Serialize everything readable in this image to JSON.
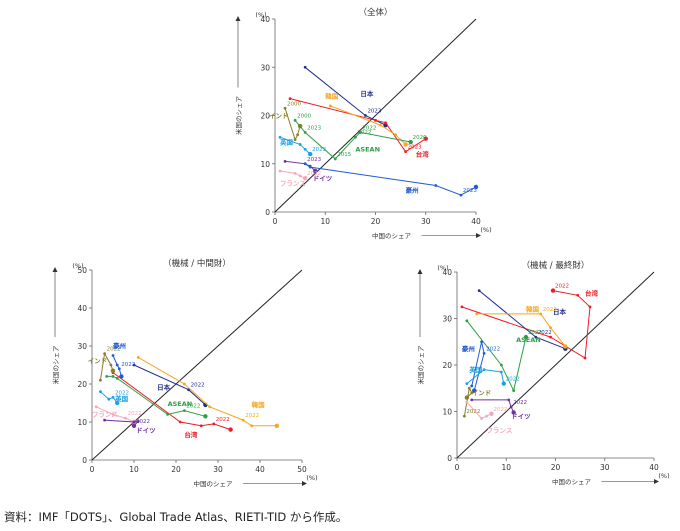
{
  "source_note": "資料：IMF「DOTS」、Global Trade Atlas、RIETI-TID から作成。",
  "chart_data": [
    {
      "type": "scatter",
      "title": "（全体）",
      "xlabel": "中国のシェア",
      "ylabel": "米国のシェア",
      "unit": "(%)",
      "xlim": [
        0,
        40
      ],
      "ylim": [
        0,
        40
      ],
      "xticks": [
        0,
        10,
        20,
        30,
        40
      ],
      "yticks": [
        0,
        10,
        20,
        30,
        40
      ],
      "diagonal": true,
      "series": [
        {
          "name": "日本",
          "color": "#1f2d8c",
          "points": [
            [
              6,
              30
            ],
            [
              18,
              20
            ],
            [
              22,
              18
            ]
          ],
          "point_labels": [
            [
              "2023",
              1
            ]
          ],
          "name_pos": [
            17,
            24
          ]
        },
        {
          "name": "台湾",
          "color": "#ee1c24",
          "points": [
            [
              3,
              23.5
            ],
            [
              20,
              19
            ],
            [
              22,
              18.5
            ],
            [
              26,
              12.5
            ],
            [
              30,
              15.2
            ]
          ],
          "point_labels": [
            [
              "2023",
              3
            ]
          ],
          "name_pos": [
            28,
            11.5
          ]
        },
        {
          "name": "韓国",
          "color": "#f5a623",
          "points": [
            [
              11,
              22
            ],
            [
              21,
              18
            ],
            [
              24,
              16
            ],
            [
              26,
              14
            ]
          ],
          "point_labels": [],
          "name_pos": [
            10,
            23.5
          ]
        },
        {
          "name": "インド",
          "color": "#8b7d2b",
          "points": [
            [
              2,
              21.5
            ],
            [
              4,
              15
            ],
            [
              4.5,
              16
            ],
            [
              5,
              17.8
            ]
          ],
          "point_labels": [
            [
              "2000",
              0
            ]
          ],
          "name_pos": [
            -1.2,
            19.5
          ]
        },
        {
          "name": "ASEAN",
          "color": "#2e9f44",
          "points": [
            [
              4,
              19
            ],
            [
              6,
              16.5
            ],
            [
              12,
              11
            ],
            [
              16,
              15.5
            ],
            [
              17,
              16.5
            ],
            [
              27,
              14.5
            ]
          ],
          "point_labels": [
            [
              "2000",
              0
            ],
            [
              "2022",
              4
            ],
            [
              "2020",
              5
            ],
            [
              "2015",
              2
            ],
            [
              "2022",
              3
            ],
            [
              "2023",
              1
            ]
          ],
          "name_pos": [
            16,
            12.5
          ]
        },
        {
          "name": "英国",
          "color": "#1ba1e2",
          "points": [
            [
              1,
              15.5
            ],
            [
              5,
              14
            ],
            [
              6,
              13
            ],
            [
              7,
              12
            ]
          ],
          "point_labels": [
            [
              "2023",
              3
            ]
          ],
          "name_pos": [
            1,
            14
          ]
        },
        {
          "name": "ドイツ",
          "color": "#7030a0",
          "points": [
            [
              2,
              10.5
            ],
            [
              6,
              10
            ],
            [
              7,
              9.5
            ],
            [
              8,
              8.5
            ]
          ],
          "point_labels": [
            [
              "2023",
              1
            ]
          ],
          "name_pos": [
            7.5,
            6.5
          ]
        },
        {
          "name": "フランス",
          "color": "#f4a7b9",
          "points": [
            [
              1,
              8.5
            ],
            [
              4,
              8
            ],
            [
              5,
              7.5
            ],
            [
              6,
              7
            ]
          ],
          "point_labels": [
            [
              "2022",
              3
            ]
          ],
          "name_pos": [
            1,
            5.5
          ]
        },
        {
          "name": "豪州",
          "color": "#1f5bd1",
          "points": [
            [
              6,
              10
            ],
            [
              7,
              9.3
            ],
            [
              32,
              5.5
            ],
            [
              37,
              3.5
            ],
            [
              40,
              5.2
            ]
          ],
          "point_labels": [
            [
              "2023",
              3
            ]
          ],
          "name_pos": [
            26,
            4
          ]
        }
      ]
    },
    {
      "type": "scatter",
      "title": "（機械 / 中間財）",
      "xlabel": "中国のシェア",
      "ylabel": "米国のシェア",
      "unit": "(%)",
      "xlim": [
        0,
        50
      ],
      "ylim": [
        0,
        50
      ],
      "xticks": [
        0,
        10,
        20,
        30,
        40,
        50
      ],
      "yticks": [
        0,
        10,
        20,
        30,
        40,
        50
      ],
      "diagonal": true,
      "series": [
        {
          "name": "日本",
          "color": "#1f2d8c",
          "points": [
            [
              10,
              25
            ],
            [
              23,
              18.5
            ],
            [
              27,
              14.5
            ]
          ],
          "point_labels": [
            [
              "2022",
              1
            ]
          ],
          "name_pos": [
            15.5,
            18.5
          ]
        },
        {
          "name": "台湾",
          "color": "#ee1c24",
          "points": [
            [
              5,
              23
            ],
            [
              21,
              10
            ],
            [
              26,
              9
            ],
            [
              29,
              9.5
            ],
            [
              33,
              8
            ]
          ],
          "point_labels": [
            [
              "2022",
              3
            ]
          ],
          "name_pos": [
            22,
            6
          ]
        },
        {
          "name": "韓国",
          "color": "#f5a623",
          "points": [
            [
              11,
              27
            ],
            [
              22,
              20
            ],
            [
              28,
              14
            ],
            [
              36,
              10.5
            ],
            [
              38,
              9
            ],
            [
              44,
              9
            ]
          ],
          "point_labels": [
            [
              "2022",
              3
            ]
          ],
          "name_pos": [
            38,
            14
          ]
        },
        {
          "name": "インド",
          "color": "#8b7d2b",
          "points": [
            [
              2,
              21
            ],
            [
              3,
              28
            ],
            [
              4.5,
              25
            ],
            [
              5,
              23.5
            ]
          ],
          "point_labels": [
            [
              "2022",
              1
            ]
          ],
          "name_pos": [
            -1,
            25.5
          ]
        },
        {
          "name": "ASEAN",
          "color": "#2e9f44",
          "points": [
            [
              3.5,
              22
            ],
            [
              5,
              22
            ],
            [
              6,
              21.5
            ],
            [
              18,
              12
            ],
            [
              22,
              13
            ],
            [
              27,
              11.5
            ]
          ],
          "point_labels": [
            [
              "2022",
              4
            ]
          ],
          "name_pos": [
            18,
            14.2
          ]
        },
        {
          "name": "豪州",
          "color": "#1f5bd1",
          "points": [
            [
              5,
              27.5
            ],
            [
              6,
              25
            ],
            [
              6.5,
              24
            ],
            [
              7,
              22
            ]
          ],
          "point_labels": [
            [
              "2022",
              2
            ]
          ],
          "name_pos": [
            5,
            29.5
          ]
        },
        {
          "name": "英国",
          "color": "#1ba1e2",
          "points": [
            [
              2,
              18
            ],
            [
              4,
              16
            ],
            [
              5,
              16.5
            ],
            [
              6,
              15
            ]
          ],
          "point_labels": [
            [
              "2022",
              2
            ]
          ],
          "name_pos": [
            5.5,
            15.5
          ]
        },
        {
          "name": "フランス",
          "color": "#f4a7b9",
          "points": [
            [
              1,
              14
            ],
            [
              5,
              12
            ],
            [
              8,
              11
            ],
            [
              10,
              10
            ]
          ],
          "point_labels": [
            [
              "2022",
              2
            ]
          ],
          "name_pos": [
            0,
            11.5
          ]
        },
        {
          "name": "ドイツ",
          "color": "#7030a0",
          "points": [
            [
              3,
              10.5
            ],
            [
              10,
              10
            ],
            [
              11,
              10.2
            ],
            [
              10,
              9
            ]
          ],
          "point_labels": [
            [
              "2022",
              3
            ]
          ],
          "name_pos": [
            10.5,
            7.2
          ]
        }
      ]
    },
    {
      "type": "scatter",
      "title": "（機械 / 最終財）",
      "xlabel": "中国のシェア",
      "ylabel": "米国のシェア",
      "unit": "(%)",
      "xlim": [
        0,
        40
      ],
      "ylim": [
        0,
        40
      ],
      "xticks": [
        0,
        10,
        20,
        30,
        40
      ],
      "yticks": [
        0,
        10,
        20,
        30,
        40
      ],
      "diagonal": true,
      "series": [
        {
          "name": "台湾",
          "color": "#ee1c24",
          "points": [
            [
              1,
              32.5
            ],
            [
              19,
              26
            ],
            [
              26,
              21.5
            ],
            [
              27,
              32.5
            ],
            [
              24.5,
              35
            ],
            [
              19.5,
              36
            ]
          ],
          "point_labels": [
            [
              "2022",
              5
            ]
          ],
          "name_pos": [
            26,
            35
          ]
        },
        {
          "name": "日本",
          "color": "#1f2d8c",
          "points": [
            [
              4.5,
              36
            ],
            [
              16,
              26
            ],
            [
              22,
              23.5
            ]
          ],
          "point_labels": [
            [
              "2022",
              1
            ]
          ],
          "name_pos": [
            19.5,
            31
          ]
        },
        {
          "name": "韓国",
          "color": "#f5a623",
          "points": [
            [
              4,
              31
            ],
            [
              17,
              31
            ],
            [
              19,
              28
            ],
            [
              22,
              24
            ]
          ],
          "point_labels": [
            [
              "2022",
              1
            ]
          ],
          "name_pos": [
            14,
            31.5
          ]
        },
        {
          "name": "ASEAN",
          "color": "#2e9f44",
          "points": [
            [
              2,
              29.5
            ],
            [
              9,
              20
            ],
            [
              11.5,
              14.5
            ],
            [
              14,
              26
            ]
          ],
          "point_labels": [
            [
              "2022",
              3
            ]
          ],
          "name_pos": [
            12,
            25
          ]
        },
        {
          "name": "豪州",
          "color": "#1f5bd1",
          "points": [
            [
              3,
              15.5
            ],
            [
              5,
              25
            ],
            [
              5.5,
              22.5
            ],
            [
              3.5,
              14.5
            ]
          ],
          "point_labels": [
            [
              "2022",
              2
            ]
          ],
          "name_pos": [
            1,
            23
          ]
        },
        {
          "name": "英国",
          "color": "#1ba1e2",
          "points": [
            [
              2,
              16
            ],
            [
              5.5,
              19
            ],
            [
              9,
              18.5
            ],
            [
              9.5,
              16
            ]
          ],
          "point_labels": [
            [
              "2022",
              3
            ]
          ],
          "name_pos": [
            2.5,
            18.5
          ]
        },
        {
          "name": "インド",
          "color": "#8b7d2b",
          "points": [
            [
              1.5,
              9
            ],
            [
              2.5,
              15
            ],
            [
              3,
              14
            ],
            [
              2,
              13
            ]
          ],
          "point_labels": [
            [
              "2022",
              0
            ]
          ],
          "name_pos": [
            3,
            13.5
          ]
        },
        {
          "name": "ドイツ",
          "color": "#7030a0",
          "points": [
            [
              3,
              12.5
            ],
            [
              10.5,
              12.5
            ],
            [
              11,
              11
            ],
            [
              11.5,
              9.8
            ]
          ],
          "point_labels": [
            [
              "2022",
              2
            ]
          ],
          "name_pos": [
            11,
            8.5
          ]
        },
        {
          "name": "フランス",
          "color": "#f4a7b9",
          "points": [
            [
              2,
              12
            ],
            [
              5,
              8.5
            ],
            [
              6,
              9
            ],
            [
              7,
              9.5
            ]
          ],
          "point_labels": [
            [
              "2022",
              3
            ]
          ],
          "name_pos": [
            6,
            5.5
          ]
        }
      ]
    }
  ]
}
